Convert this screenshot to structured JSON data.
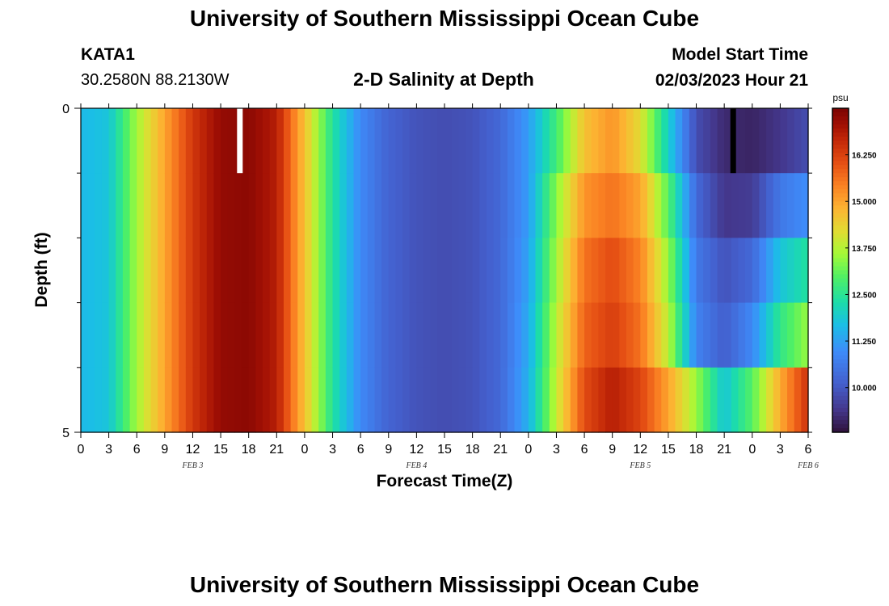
{
  "header": {
    "title": "University of Southern Mississippi Ocean Cube",
    "station": "KATA1",
    "coords": "30.2580N  88.2130W",
    "plot_title": "2-D Salinity at Depth",
    "model_start_label": "Model Start Time",
    "model_start_value": "02/03/2023 Hour 21"
  },
  "footer": {
    "title": "University of Southern Mississippi Ocean Cube"
  },
  "chart_data": {
    "type": "heatmap",
    "title": "2-D Salinity at Depth",
    "xlabel": "Forecast Time(Z)",
    "ylabel": "Depth (ft)",
    "ylim": [
      0,
      5
    ],
    "y_ticks": [
      "0",
      "5"
    ],
    "x_tick_labels": [
      "0",
      "3",
      "6",
      "9",
      "12",
      "15",
      "18",
      "21",
      "0",
      "3",
      "6",
      "9",
      "12",
      "15",
      "18",
      "21",
      "0",
      "3",
      "6",
      "9",
      "12",
      "15",
      "18",
      "21",
      "0",
      "3",
      "6"
    ],
    "day_labels": [
      {
        "label": "FEB 3",
        "hour": 12
      },
      {
        "label": "FEB 4",
        "hour": 36
      },
      {
        "label": "FEB 5",
        "hour": 60
      },
      {
        "label": "FEB 6",
        "hour": 78
      }
    ],
    "colorbar": {
      "unit": "psu",
      "tick_labels": [
        "16.250",
        "15.000",
        "13.750",
        "12.500",
        "11.250",
        "10.000"
      ],
      "tick_values": [
        16.25,
        15.0,
        13.75,
        12.5,
        11.25,
        10.0
      ],
      "range": [
        8.8,
        17.5
      ]
    },
    "hours": [
      0,
      78
    ],
    "depth_layers": [
      0,
      1,
      2,
      3,
      4
    ],
    "profile_hours": [
      0,
      3,
      6,
      9,
      12,
      15,
      18,
      21,
      24,
      27,
      30,
      33,
      36,
      39,
      42,
      45,
      48,
      51,
      54,
      57,
      60,
      63,
      66,
      69,
      72,
      75,
      78
    ],
    "salinity_profiles": [
      [
        11.6,
        11.6,
        11.6,
        11.6,
        11.6
      ],
      [
        11.8,
        11.8,
        11.8,
        11.8,
        11.8
      ],
      [
        13.6,
        13.6,
        13.6,
        13.6,
        13.6
      ],
      [
        15.0,
        15.0,
        15.0,
        15.0,
        15.0
      ],
      [
        16.4,
        16.4,
        16.4,
        16.4,
        16.4
      ],
      [
        17.2,
        17.2,
        17.2,
        17.2,
        17.2
      ],
      [
        17.3,
        17.3,
        17.3,
        17.3,
        17.3
      ],
      [
        16.8,
        16.8,
        16.8,
        16.8,
        16.8
      ],
      [
        14.6,
        14.6,
        14.6,
        14.6,
        14.6
      ],
      [
        12.4,
        12.4,
        12.4,
        12.4,
        12.4
      ],
      [
        10.9,
        10.9,
        10.9,
        10.9,
        10.9
      ],
      [
        10.2,
        10.2,
        10.2,
        10.2,
        10.2
      ],
      [
        9.9,
        9.9,
        9.9,
        9.9,
        9.9
      ],
      [
        9.8,
        9.8,
        9.8,
        9.8,
        9.8
      ],
      [
        9.9,
        9.9,
        9.9,
        9.9,
        9.9
      ],
      [
        10.3,
        10.3,
        10.3,
        10.3,
        10.3
      ],
      [
        11.2,
        11.2,
        11.3,
        11.4,
        11.5
      ],
      [
        12.8,
        13.4,
        13.6,
        13.8,
        13.9
      ],
      [
        14.6,
        15.2,
        15.6,
        15.8,
        16.1
      ],
      [
        15.2,
        15.6,
        16.1,
        16.3,
        16.8
      ],
      [
        14.2,
        15.0,
        15.4,
        15.6,
        16.2
      ],
      [
        12.0,
        13.0,
        13.5,
        13.8,
        15.0
      ],
      [
        9.8,
        10.3,
        10.6,
        10.8,
        13.5
      ],
      [
        9.2,
        9.4,
        9.9,
        10.1,
        11.8
      ],
      [
        9.1,
        9.5,
        10.3,
        10.9,
        13.0
      ],
      [
        9.4,
        10.6,
        11.8,
        12.6,
        14.9
      ],
      [
        9.8,
        11.0,
        12.4,
        13.5,
        16.5
      ]
    ]
  }
}
